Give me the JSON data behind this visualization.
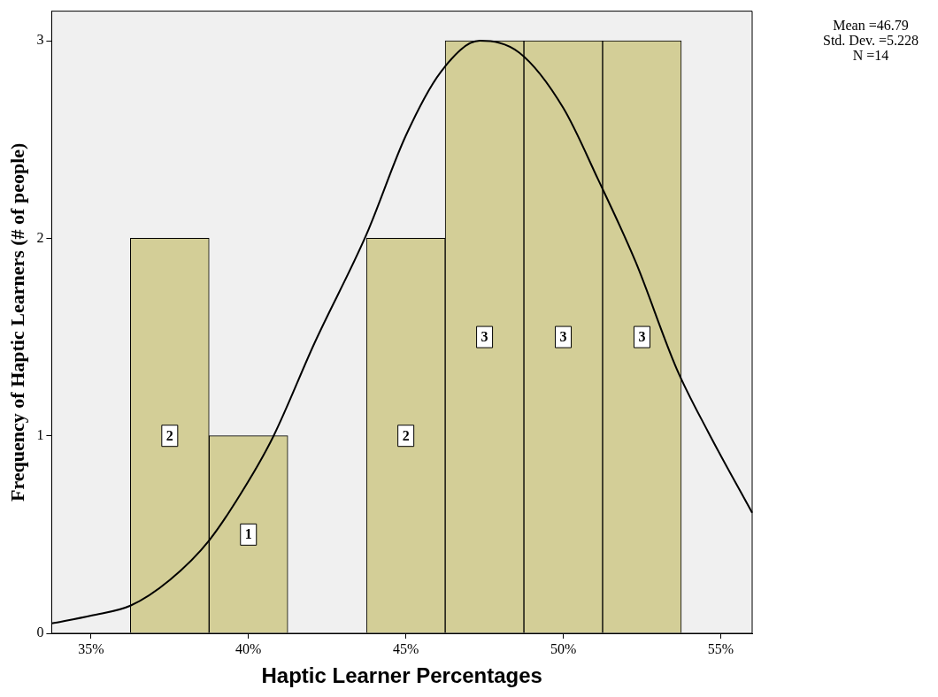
{
  "chart_data": {
    "type": "histogram",
    "xlabel": "Haptic Learner Percentages",
    "ylabel": "Frequency of Haptic Learners (# of people)",
    "bins": [
      36.25,
      38.75,
      41.25,
      43.75,
      46.25,
      48.75,
      51.25,
      53.75
    ],
    "values": [
      2,
      1,
      0,
      2,
      3,
      3,
      3
    ],
    "value_labels": [
      "2",
      "1",
      null,
      "2",
      "3",
      "3",
      "3"
    ],
    "color": "#d3ce97",
    "xlim": [
      33.75,
      56
    ],
    "ylim": [
      0,
      3.15
    ],
    "xticks": [
      {
        "value": 35,
        "label": "35%"
      },
      {
        "value": 40,
        "label": "40%"
      },
      {
        "value": 45,
        "label": "45%"
      },
      {
        "value": 50,
        "label": "50%"
      },
      {
        "value": 55,
        "label": "55%"
      }
    ],
    "yticks": [
      0,
      1,
      2,
      3
    ],
    "grid": false,
    "legend": false,
    "series": [
      {
        "type": "line",
        "color": "#000000",
        "x": [
          33.75,
          35,
          36.25,
          37.5,
          38.75,
          40,
          40.8,
          42.1,
          43.75,
          45,
          46.1,
          47.35,
          48.6,
          50,
          51.1,
          52.3,
          53.6,
          54.6,
          56
        ],
        "values": [
          0.05,
          0.09,
          0.14,
          0.27,
          0.47,
          0.77,
          1.0,
          1.47,
          2.02,
          2.52,
          2.84,
          3.0,
          2.94,
          2.66,
          2.3,
          1.88,
          1.34,
          1.02,
          0.61
        ]
      }
    ],
    "annotations": [
      "Mean =46.79",
      "Std. Dev. =5.228",
      "N =14"
    ]
  }
}
